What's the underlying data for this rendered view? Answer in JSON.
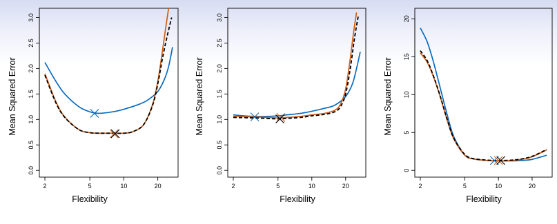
{
  "chart_data": [
    {
      "type": "line",
      "xlabel": "Flexibility",
      "ylabel": "Mean Squared Error",
      "xscale": "log",
      "xlim": [
        2,
        27
      ],
      "ylim": [
        0,
        3.05
      ],
      "xticks": [
        2,
        5,
        10,
        20
      ],
      "yticks": [
        0.0,
        0.5,
        1.0,
        1.5,
        2.0,
        2.5,
        3.0
      ],
      "ytick_labels": [
        "0.0",
        "0.5",
        "1.0",
        "1.5",
        "2.0",
        "2.5",
        "3.0"
      ],
      "series": [
        {
          "color": "#0a6bbf",
          "dash": "solid",
          "x": [
            2,
            2.5,
            3,
            4,
            5,
            6,
            8,
            10,
            13,
            16,
            20,
            23,
            25,
            27
          ],
          "y": [
            2.12,
            1.75,
            1.5,
            1.25,
            1.15,
            1.12,
            1.15,
            1.2,
            1.28,
            1.37,
            1.55,
            1.8,
            2.05,
            2.42
          ]
        },
        {
          "color": "#d05e15",
          "dash": "solid",
          "x": [
            2,
            2.5,
            3,
            4,
            5,
            6,
            8,
            10,
            12,
            15,
            18,
            20,
            22,
            23.5,
            25
          ],
          "y": [
            1.9,
            1.35,
            1.05,
            0.8,
            0.74,
            0.73,
            0.73,
            0.73,
            0.76,
            0.9,
            1.3,
            1.75,
            2.35,
            2.8,
            3.2
          ]
        },
        {
          "color": "#000000",
          "dash": "dashed",
          "x": [
            2,
            2.5,
            3,
            4,
            5,
            6,
            8,
            10,
            12,
            15,
            18,
            20,
            22,
            24,
            26.5
          ],
          "y": [
            1.87,
            1.33,
            1.04,
            0.8,
            0.74,
            0.73,
            0.73,
            0.73,
            0.76,
            0.9,
            1.28,
            1.7,
            2.2,
            2.6,
            3.0
          ]
        }
      ],
      "markers": [
        {
          "x": 5.5,
          "y": 1.12,
          "color": "#0a6bbf"
        },
        {
          "x": 8.2,
          "y": 0.72,
          "color": "#d05e15"
        },
        {
          "x": 8.4,
          "y": 0.72,
          "color": "#000000"
        }
      ]
    },
    {
      "type": "line",
      "xlabel": "Flexibility",
      "ylabel": "Mean Squared Error",
      "xscale": "log",
      "xlim": [
        2,
        27
      ],
      "ylim": [
        0,
        3.05
      ],
      "xticks": [
        2,
        5,
        10,
        20
      ],
      "yticks": [
        0.0,
        0.5,
        1.0,
        1.5,
        2.0,
        2.5,
        3.0
      ],
      "ytick_labels": [
        "0.0",
        "0.5",
        "1.0",
        "1.5",
        "2.0",
        "2.5",
        "3.0"
      ],
      "series": [
        {
          "color": "#0a6bbf",
          "dash": "solid",
          "x": [
            2,
            2.5,
            3,
            4,
            5,
            6,
            8,
            10,
            13,
            16,
            20,
            23,
            25,
            27
          ],
          "y": [
            1.09,
            1.07,
            1.06,
            1.06,
            1.07,
            1.09,
            1.12,
            1.16,
            1.22,
            1.28,
            1.45,
            1.7,
            2.0,
            2.33
          ]
        },
        {
          "color": "#d05e15",
          "dash": "solid",
          "x": [
            2,
            3,
            4,
            5,
            6,
            8,
            10,
            13,
            16,
            18,
            20,
            22,
            23.5,
            25
          ],
          "y": [
            1.06,
            1.05,
            1.04,
            1.03,
            1.04,
            1.06,
            1.09,
            1.12,
            1.18,
            1.3,
            1.6,
            2.2,
            2.7,
            3.1
          ]
        },
        {
          "color": "#000000",
          "dash": "dashed",
          "x": [
            2,
            3,
            4,
            5,
            6,
            8,
            10,
            13,
            16,
            18,
            20,
            22,
            24,
            26
          ],
          "y": [
            1.04,
            1.03,
            1.02,
            1.01,
            1.02,
            1.04,
            1.07,
            1.1,
            1.15,
            1.25,
            1.5,
            2.0,
            2.6,
            3.05
          ]
        }
      ],
      "markers": [
        {
          "x": 3.1,
          "y": 1.05,
          "color": "#0a6bbf"
        },
        {
          "x": 5.3,
          "y": 1.04,
          "color": "#d05e15"
        },
        {
          "x": 5.2,
          "y": 1.01,
          "color": "#000000"
        }
      ]
    },
    {
      "type": "line",
      "xlabel": "Flexibility",
      "ylabel": "Mean Squared Error",
      "xscale": "log",
      "xlim": [
        2,
        27
      ],
      "ylim": [
        0,
        20.5
      ],
      "xticks": [
        2,
        5,
        10,
        20
      ],
      "yticks": [
        0,
        5,
        10,
        15,
        20
      ],
      "ytick_labels": [
        "0",
        "5",
        "10",
        "15",
        "20"
      ],
      "series": [
        {
          "color": "#0a6bbf",
          "dash": "solid",
          "x": [
            2,
            2.3,
            2.6,
            3,
            3.5,
            4,
            5,
            6,
            8,
            10,
            13,
            16,
            20,
            27
          ],
          "y": [
            18.8,
            17.0,
            14.5,
            11.0,
            7.2,
            4.4,
            2.0,
            1.5,
            1.3,
            1.25,
            1.25,
            1.3,
            1.45,
            2.0
          ]
        },
        {
          "color": "#d05e15",
          "dash": "solid",
          "x": [
            2,
            2.3,
            2.6,
            3,
            3.5,
            4,
            5,
            6,
            8,
            10,
            13,
            16,
            20,
            27
          ],
          "y": [
            15.5,
            14.3,
            12.5,
            9.8,
            6.5,
            4.1,
            2.0,
            1.5,
            1.3,
            1.25,
            1.3,
            1.45,
            1.8,
            2.7
          ]
        },
        {
          "color": "#000000",
          "dash": "dashed",
          "x": [
            2,
            2.3,
            2.6,
            3,
            3.5,
            4,
            5,
            6,
            8,
            10,
            13,
            16,
            20,
            27
          ],
          "y": [
            15.8,
            14.5,
            12.6,
            9.9,
            6.6,
            4.2,
            2.1,
            1.55,
            1.35,
            1.3,
            1.35,
            1.5,
            1.85,
            2.75
          ]
        }
      ],
      "markers": [
        {
          "x": 9.2,
          "y": 1.3,
          "color": "#0a6bbf"
        },
        {
          "x": 10.0,
          "y": 1.3,
          "color": "#d05e15"
        },
        {
          "x": 10.5,
          "y": 1.3,
          "color": "#000000"
        }
      ]
    }
  ]
}
